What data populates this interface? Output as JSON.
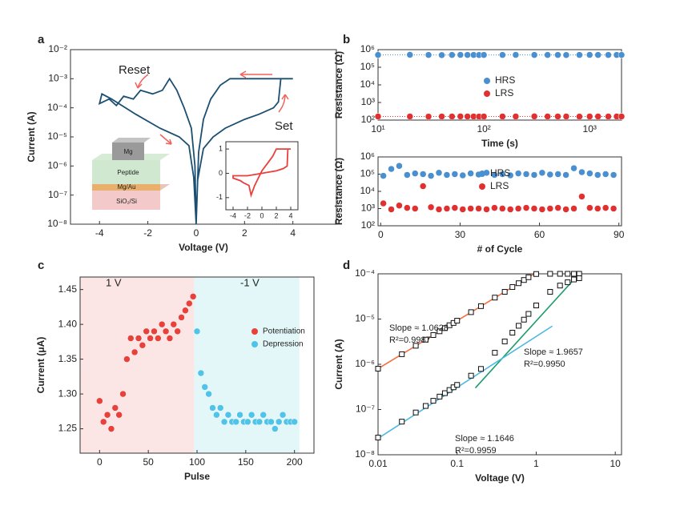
{
  "chart_data": [
    {
      "type": "line",
      "panel_label": "a",
      "xlabel": "Voltage (V)",
      "ylabel": "Current (A)",
      "xlim": [
        -5.2,
        5.8
      ],
      "xticks": [
        -4,
        -2,
        0,
        2,
        4
      ],
      "y_scale": "log",
      "ylim": [
        1e-08,
        0.01
      ],
      "yticks": [
        {
          "value": 1e-08,
          "label": "10⁻⁸"
        },
        {
          "value": 1e-07,
          "label": "10⁻⁷"
        },
        {
          "value": 1e-06,
          "label": "10⁻⁶"
        },
        {
          "value": 1e-05,
          "label": "10⁻⁵"
        },
        {
          "value": 0.0001,
          "label": "10⁻⁴"
        },
        {
          "value": 0.001,
          "label": "10⁻³"
        },
        {
          "value": 0.01,
          "label": "10⁻²"
        }
      ],
      "series": [
        {
          "color": "#1b4f72",
          "x": [
            0.05,
            0.3,
            0.7,
            1.2,
            2,
            2.6,
            3.2,
            3.4,
            3.5,
            4,
            1.4,
            1,
            0.6,
            0.3,
            0.1,
            0,
            -0.05,
            -0.2,
            -0.5,
            -0.8,
            -1.1,
            -1.4,
            -1.8,
            -2.3,
            -2.6,
            -3,
            -3.3,
            -3.6,
            -4,
            -3.9,
            -3.5,
            -2.5,
            -1.5,
            -0.7,
            -0.3,
            -0.1,
            0
          ],
          "values": [
            3e-07,
            4e-06,
            1e-05,
            2e-05,
            4e-05,
            6e-05,
            0.0001,
            0.00016,
            0.001,
            0.001,
            0.001,
            0.0006,
            0.0002,
            4e-05,
            3e-06,
            1e-08,
            1e-06,
            2e-05,
            0.0001,
            0.0004,
            0.001,
            0.0004,
            0.0003,
            0.0004,
            0.0002,
            0.00025,
            0.00012,
            0.0002,
            0.00014,
            0.0003,
            0.0002,
            6e-05,
            2e-05,
            1e-05,
            5e-06,
            4e-07,
            1e-08
          ]
        }
      ],
      "annotations": [
        {
          "text": "Reset",
          "color": "#f0625a"
        },
        {
          "text": "Set",
          "color": "#f0625a"
        }
      ],
      "layers": [
        "Mg",
        "Peptide",
        "Mg/Au",
        "SiO₂/Si"
      ],
      "inset": {
        "type": "line",
        "xlim": [
          -5,
          5
        ],
        "xticks": [
          -4,
          -2,
          0,
          2,
          4
        ],
        "ylim": [
          -1.5,
          1.3
        ],
        "yticks": [
          -1,
          0,
          1
        ],
        "series": [
          {
            "color": "#e8403a",
            "x": [
              0,
              1,
              2,
              3,
              3.5,
              3.6,
              4,
              3,
              2,
              1.5,
              1,
              0,
              -1,
              -1.5,
              -1.8,
              -2.5,
              -3,
              -4,
              -4,
              -3,
              -2,
              -1,
              0
            ],
            "values": [
              0,
              0.05,
              0.1,
              0.2,
              0.3,
              1,
              1,
              1,
              1,
              0.7,
              0.5,
              0.1,
              -0.5,
              -0.9,
              -0.5,
              -0.4,
              -0.3,
              -0.2,
              -0.1,
              -0.1,
              -0.1,
              -0.05,
              0
            ]
          }
        ]
      }
    },
    {
      "type": "scatter",
      "panel_label": "b",
      "xlabel": "Time (s)",
      "ylabel": "Resistance (Ω)",
      "x_scale": "log",
      "xlim": [
        10,
        2000
      ],
      "xticks": [
        {
          "value": 10,
          "label": "10¹"
        },
        {
          "value": 100,
          "label": "10²"
        },
        {
          "value": 1000,
          "label": "10³"
        }
      ],
      "y_scale": "log",
      "ylim": [
        100,
        1000000
      ],
      "yticks": [
        {
          "value": 100,
          "label": "10²"
        },
        {
          "value": 1000,
          "label": "10³"
        },
        {
          "value": 10000,
          "label": "10⁴"
        },
        {
          "value": 100000,
          "label": "10⁵"
        },
        {
          "value": 1000000,
          "label": "10⁶"
        }
      ],
      "connect": "dotted",
      "legend": "center",
      "x": [
        10,
        20,
        30,
        40,
        50,
        60,
        70,
        80,
        90,
        100,
        150,
        200,
        300,
        400,
        500,
        600,
        800,
        1000,
        1200,
        1500,
        1800,
        2000
      ],
      "series": [
        {
          "name": "HRS",
          "color": "#4a8fcf",
          "values": [
            500000,
            510000,
            500000,
            490000,
            500000,
            505000,
            500000,
            500000,
            495000,
            500000,
            500000,
            505000,
            500000,
            500000,
            500000,
            495000,
            500000,
            505000,
            500000,
            500000,
            500000,
            500000
          ]
        },
        {
          "name": "LRS",
          "color": "#e03030",
          "values": [
            160,
            160,
            158,
            160,
            160,
            162,
            160,
            160,
            158,
            160,
            160,
            160,
            162,
            160,
            160,
            160,
            158,
            160,
            160,
            160,
            160,
            160
          ]
        }
      ]
    },
    {
      "type": "scatter",
      "xlabel": "# of Cycle",
      "ylabel": "Resistance (Ω)",
      "xlim": [
        -1,
        91
      ],
      "xticks": [
        0,
        30,
        60,
        90
      ],
      "y_scale": "log",
      "ylim": [
        100,
        1000000
      ],
      "yticks": [
        {
          "value": 100,
          "label": "10²"
        },
        {
          "value": 1000,
          "label": "10³"
        },
        {
          "value": 10000,
          "label": "10⁴"
        },
        {
          "value": 100000,
          "label": "10⁵"
        },
        {
          "value": 1000000,
          "label": "10⁶"
        }
      ],
      "legend": "center",
      "x": [
        1,
        4,
        7,
        10,
        13,
        16,
        19,
        22,
        25,
        28,
        31,
        34,
        37,
        40,
        43,
        46,
        49,
        52,
        55,
        58,
        61,
        64,
        67,
        70,
        73,
        76,
        79,
        82,
        85,
        88
      ],
      "series": [
        {
          "name": "HRS",
          "color": "#4a8fcf",
          "values": [
            80000,
            200000,
            300000,
            90000,
            110000,
            100000,
            80000,
            120000,
            90000,
            100000,
            85000,
            110000,
            95000,
            120000,
            90000,
            100000,
            85000,
            110000,
            100000,
            90000,
            120000,
            95000,
            100000,
            90000,
            220000,
            130000,
            110000,
            90000,
            100000,
            90000
          ]
        },
        {
          "name": "LRS",
          "color": "#e03030",
          "values": [
            2000,
            900,
            1500,
            1100,
            1000,
            20000,
            1200,
            900,
            1000,
            1100,
            900,
            1000,
            1000,
            900,
            1100,
            1000,
            900,
            1000,
            1100,
            1000,
            900,
            1000,
            1100,
            900,
            1000,
            5000,
            1100,
            1000,
            1100,
            1000
          ]
        }
      ]
    },
    {
      "type": "scatter",
      "panel_label": "c",
      "xlabel": "Pulse",
      "ylabel": "Current (μA)",
      "xlim": [
        -20,
        220
      ],
      "xticks": [
        0,
        50,
        100,
        150,
        200
      ],
      "ylim": [
        1.215,
        1.468
      ],
      "yticks": [
        1.25,
        {
          "value": 1.3,
          "label": "1.30"
        },
        1.35,
        {
          "value": 1.4,
          "label": "1.40"
        },
        1.45
      ],
      "bands": [
        {
          "from": -20,
          "to": 97,
          "color": "#fbe5e5"
        },
        {
          "from": 97,
          "to": 205,
          "color": "#e3f6f8"
        }
      ],
      "legend": "center right",
      "annotations": [
        {
          "text": "1 V",
          "color": "#d9343a"
        },
        {
          "text": "-1 V",
          "color": "#3d86c6"
        }
      ],
      "pulse_ellipsis": "···",
      "series": [
        {
          "name": "Potentiation",
          "color": "#e8403a",
          "x": [
            0,
            4,
            8,
            12,
            16,
            20,
            24,
            28,
            32,
            36,
            40,
            44,
            48,
            52,
            56,
            60,
            64,
            68,
            72,
            76,
            80,
            84,
            88,
            92,
            96
          ],
          "values": [
            1.29,
            1.26,
            1.27,
            1.25,
            1.28,
            1.27,
            1.3,
            1.35,
            1.38,
            1.36,
            1.38,
            1.37,
            1.39,
            1.38,
            1.39,
            1.38,
            1.4,
            1.39,
            1.38,
            1.4,
            1.39,
            1.41,
            1.42,
            1.43,
            1.44
          ]
        },
        {
          "name": "Depression",
          "color": "#4fc3e8",
          "x": [
            100,
            104,
            108,
            112,
            116,
            120,
            124,
            128,
            132,
            136,
            140,
            144,
            148,
            152,
            156,
            160,
            164,
            168,
            172,
            176,
            180,
            184,
            188,
            192,
            196,
            200
          ],
          "values": [
            1.39,
            1.33,
            1.31,
            1.3,
            1.28,
            1.27,
            1.28,
            1.26,
            1.27,
            1.26,
            1.26,
            1.27,
            1.26,
            1.26,
            1.27,
            1.26,
            1.26,
            1.27,
            1.26,
            1.26,
            1.25,
            1.26,
            1.27,
            1.26,
            1.26,
            1.26
          ]
        }
      ]
    },
    {
      "type": "scatter",
      "panel_label": "d",
      "xlabel": "Voltage (V)",
      "ylabel": "Current (A)",
      "marker": "square-open",
      "x_scale": "log",
      "xlim": [
        0.01,
        12
      ],
      "xticks": [
        0.01,
        0.1,
        1,
        10
      ],
      "y_scale": "log",
      "ylim": [
        1e-08,
        0.0001
      ],
      "yticks": [
        {
          "value": 1e-08,
          "label": "10⁻⁸"
        },
        {
          "value": 1e-07,
          "label": "10⁻⁷"
        },
        {
          "value": 1e-06,
          "label": "10⁻⁶"
        },
        {
          "value": 1e-05,
          "label": "10⁻⁵"
        },
        {
          "value": 0.0001,
          "label": "10⁻⁴"
        }
      ],
      "x": [
        0.01,
        0.02,
        0.03,
        0.04,
        0.05,
        0.06,
        0.07,
        0.08,
        0.09,
        0.1,
        0.15,
        0.2,
        0.3,
        0.4,
        0.5,
        0.6,
        0.7,
        0.8,
        1,
        1.5,
        2,
        2.5,
        3,
        3.5
      ],
      "series": [
        {
          "color": "#111111",
          "values": [
            8e-07,
            1.67e-06,
            2.57e-06,
            3.5e-06,
            4.43e-06,
            5.36e-06,
            6.3e-06,
            7.3e-06,
            8.2e-06,
            9.2e-06,
            1.42e-05,
            1.93e-05,
            2.98e-05,
            4e-05,
            5.1e-05,
            6.2e-05,
            7.3e-05,
            8.4e-05,
            9.9e-05,
            0.0001,
            0.0001,
            0.0001,
            0.0001,
            0.0001
          ]
        },
        {
          "color": "#111111",
          "values": [
            2.4e-08,
            5.4e-08,
            8.6e-08,
            1.2e-07,
            1.56e-07,
            1.93e-07,
            2.3e-07,
            2.7e-07,
            3.1e-07,
            3.5e-07,
            5.6e-07,
            7.9e-07,
            1.8e-06,
            3.2e-06,
            5e-06,
            7.1e-06,
            9.7e-06,
            1.3e-05,
            2e-05,
            4e-05,
            5.5e-05,
            6.5e-05,
            7.5e-05,
            8e-05
          ]
        }
      ],
      "fits": [
        {
          "color": "#f07040",
          "x": [
            0.01,
            0.95
          ],
          "values": [
            8e-07,
            0.0001
          ],
          "slope": "Slope ≈ 1.0628",
          "r2": "R²=0.9987"
        },
        {
          "color": "#1a9e6a",
          "x": [
            0.17,
            3.3
          ],
          "values": [
            3e-07,
            9e-05
          ],
          "slope": "Slope ≈ 1.9657",
          "r2": "R²=0.9950"
        },
        {
          "color": "#4cb8e0",
          "x": [
            0.01,
            1.6
          ],
          "values": [
            2.3e-08,
            7e-06
          ],
          "slope": "Slope ≈ 1.1646",
          "r2": "R²=0.9959"
        }
      ]
    }
  ]
}
